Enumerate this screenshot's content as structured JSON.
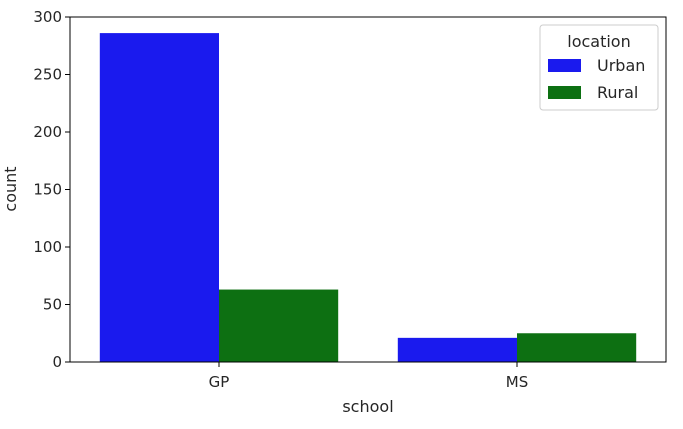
{
  "chart_data": {
    "type": "bar",
    "categories": [
      "GP",
      "MS"
    ],
    "series": [
      {
        "name": "Urban",
        "values": [
          286,
          21
        ],
        "color": "#1a1aee"
      },
      {
        "name": "Rural",
        "values": [
          63,
          25
        ],
        "color": "#0d7012"
      }
    ],
    "xlabel": "school",
    "ylabel": "count",
    "ylim": [
      0,
      300
    ],
    "yticks": [
      0,
      50,
      100,
      150,
      200,
      250,
      300
    ],
    "legend": {
      "title": "location",
      "placement": "top-right"
    },
    "grid": false
  }
}
